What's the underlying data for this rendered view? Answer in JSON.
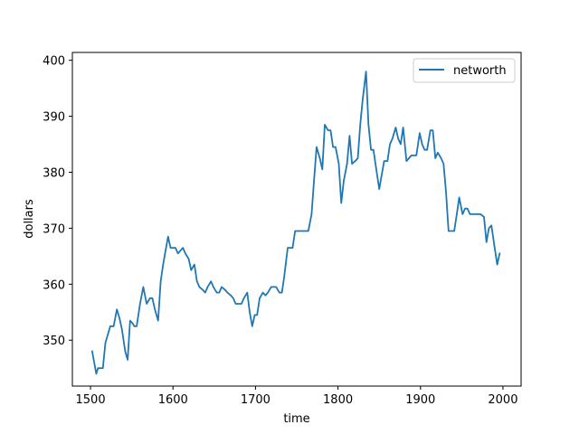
{
  "chart_data": {
    "type": "line",
    "title": "",
    "xlabel": "time",
    "ylabel": "dollars",
    "xlim": [
      1478,
      2022
    ],
    "ylim": [
      341.8,
      401.4
    ],
    "xticks": [
      1500,
      1600,
      1700,
      1800,
      1900,
      2000
    ],
    "yticks": [
      350,
      360,
      370,
      380,
      390,
      400
    ],
    "grid": false,
    "legend": "top-right",
    "series": [
      {
        "name": "networth",
        "color": "#1f77b4",
        "x": [
          1502,
          1507,
          1509,
          1512,
          1515,
          1518,
          1521,
          1524,
          1528,
          1532,
          1535,
          1538,
          1542,
          1545,
          1548,
          1551,
          1553,
          1556,
          1560,
          1564,
          1568,
          1572,
          1575,
          1578,
          1582,
          1585,
          1588,
          1591,
          1594,
          1597,
          1600,
          1603,
          1606,
          1609,
          1612,
          1615,
          1619,
          1622,
          1626,
          1629,
          1632,
          1636,
          1639,
          1642,
          1646,
          1649,
          1653,
          1656,
          1659,
          1663,
          1666,
          1670,
          1673,
          1676,
          1680,
          1683,
          1686,
          1690,
          1693,
          1696,
          1699,
          1702,
          1705,
          1709,
          1712,
          1715,
          1719,
          1722,
          1725,
          1729,
          1732,
          1735,
          1739,
          1742,
          1745,
          1748,
          1751,
          1755,
          1758,
          1761,
          1764,
          1768,
          1771,
          1774,
          1778,
          1781,
          1784,
          1788,
          1791,
          1794,
          1797,
          1801,
          1804,
          1807,
          1811,
          1814,
          1817,
          1821,
          1824,
          1827,
          1830,
          1834,
          1837,
          1840,
          1843,
          1847,
          1850,
          1853,
          1856,
          1860,
          1863,
          1866,
          1870,
          1873,
          1876,
          1879,
          1883,
          1886,
          1889,
          1892,
          1895,
          1899,
          1902,
          1905,
          1908,
          1912,
          1915,
          1918,
          1921,
          1925,
          1928,
          1931,
          1934,
          1938,
          1941,
          1944,
          1947,
          1951,
          1954,
          1957,
          1960,
          1964,
          1967,
          1970,
          1973,
          1977,
          1980,
          1983,
          1986,
          1990,
          1993,
          1996
        ],
        "y": [
          348,
          344,
          345,
          345,
          345,
          349.5,
          351,
          352.5,
          352.5,
          355.5,
          354,
          352,
          348,
          346.5,
          353.5,
          353,
          352.5,
          352.5,
          356.5,
          359.5,
          356.5,
          357.5,
          357.5,
          355.5,
          353.5,
          360.5,
          363.5,
          366,
          368.5,
          366.5,
          366.5,
          366.5,
          365.5,
          366,
          366.5,
          365.5,
          364.5,
          362.5,
          363.5,
          360.5,
          359.5,
          359,
          358.5,
          359.5,
          360.5,
          359.5,
          358.5,
          358.5,
          359.5,
          359,
          358.5,
          358,
          357.5,
          356.5,
          356.5,
          356.5,
          357.5,
          358.5,
          355,
          352.5,
          354.5,
          354.5,
          357.5,
          358.5,
          358,
          358.5,
          359.5,
          359.5,
          359.5,
          358.5,
          358.5,
          361.5,
          366.5,
          366.5,
          366.5,
          369.5,
          369.5,
          369.5,
          369.5,
          369.5,
          369.5,
          372.5,
          378.5,
          384.5,
          382.5,
          380.5,
          388.5,
          387.5,
          387.5,
          384.5,
          384.5,
          381.5,
          374.5,
          378.5,
          381.5,
          386.5,
          381.5,
          382,
          382.5,
          388.5,
          393,
          398,
          388.5,
          384,
          384,
          380,
          377,
          379.5,
          382,
          382,
          385,
          386,
          388,
          386,
          385,
          388,
          382,
          382.5,
          383,
          383,
          383,
          387,
          385,
          384,
          384,
          387.5,
          387.5,
          382.5,
          383.5,
          382.5,
          381.5,
          376.5,
          369.5,
          369.5,
          369.5,
          372.5,
          375.5,
          372.5,
          373.5,
          373.5,
          372.5,
          372.5,
          372.5,
          372.5,
          372.5,
          372,
          367.5,
          370,
          370.5,
          366.5,
          363.5,
          365.5
        ]
      }
    ]
  }
}
